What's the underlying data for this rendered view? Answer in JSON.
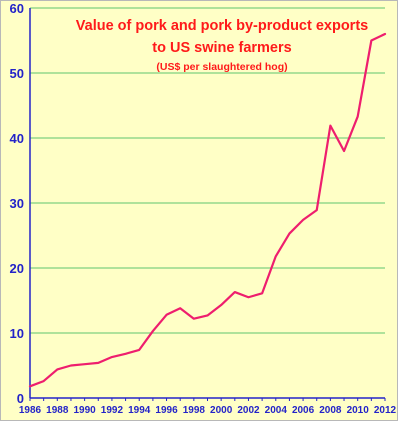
{
  "chart_data": {
    "type": "line",
    "title": "Value of pork and pork by-product exports",
    "title_line2": "to US swine farmers",
    "subtitle": "(US$ per slaughtered hog)",
    "xlabel": "",
    "ylabel": "",
    "xlim": [
      1986,
      2012
    ],
    "ylim": [
      0,
      60
    ],
    "grid": "horizontal",
    "yticks": [
      0,
      10,
      20,
      30,
      40,
      50,
      60
    ],
    "xticks": [
      1986,
      1988,
      1990,
      1992,
      1994,
      1996,
      1998,
      2000,
      2002,
      2004,
      2006,
      2008,
      2010,
      2012
    ],
    "line_color": "#ee1e6e",
    "title_color": "#ff1a1a",
    "axis_color": "#2323c8",
    "grid_color": "#7fd07f",
    "background_color": "#ffffc6",
    "x": [
      1986,
      1987,
      1988,
      1989,
      1990,
      1991,
      1992,
      1993,
      1994,
      1995,
      1996,
      1997,
      1998,
      1999,
      2000,
      2001,
      2002,
      2003,
      2004,
      2005,
      2006,
      2007,
      2008,
      2009,
      2010,
      2011,
      2012
    ],
    "series": [
      {
        "values": [
          1.8,
          2.6,
          4.4,
          5.0,
          5.2,
          5.4,
          6.3,
          6.8,
          7.4,
          10.3,
          12.8,
          13.8,
          12.2,
          12.7,
          14.3,
          16.3,
          15.5,
          16.1,
          21.8,
          25.3,
          27.4,
          28.9,
          41.9,
          38.0,
          43.3,
          55.0,
          56.0
        ]
      }
    ]
  }
}
